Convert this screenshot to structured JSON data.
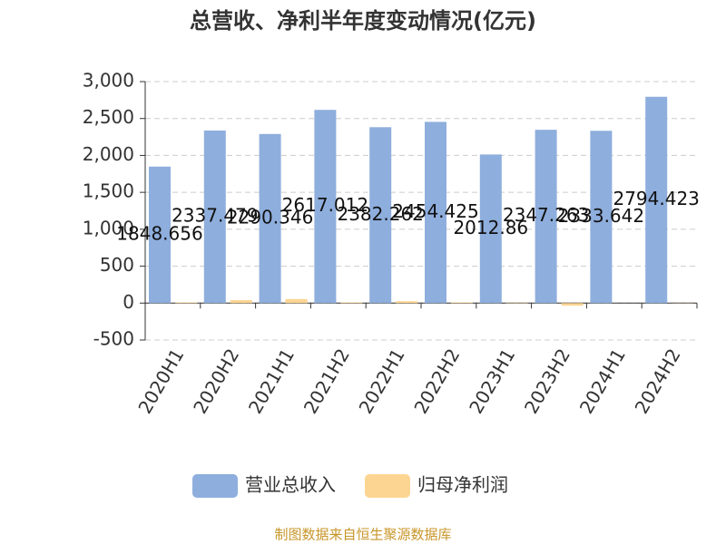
{
  "chart_data": {
    "type": "bar",
    "title": "总营收、净利半年度变动情况(亿元)",
    "categories": [
      "2020H1",
      "2020H2",
      "2021H1",
      "2021H2",
      "2022H1",
      "2022H2",
      "2023H1",
      "2023H2",
      "2024H1",
      "2024H2"
    ],
    "series": [
      {
        "name": "营业总收入",
        "color": "#8eaedd",
        "values": [
          1848.656,
          2337.479,
          2290.346,
          2617.012,
          2382.262,
          2454.425,
          2012.86,
          2347.263,
          2333.642,
          2794.423
        ],
        "labels": true
      },
      {
        "name": "归母净利润",
        "color": "#fdd592",
        "values": [
          10,
          40,
          55,
          10,
          25,
          10,
          5,
          -35,
          0,
          2
        ],
        "labels": false
      }
    ],
    "ylim": [
      -500,
      3000
    ],
    "yticks": [
      -500,
      0,
      500,
      {
        "value": 1000,
        "label": "1,000"
      },
      {
        "value": 1500,
        "label": "1,500"
      },
      {
        "value": 2000,
        "label": "2,000"
      },
      {
        "value": 2500,
        "label": "2,500"
      },
      {
        "value": 3000,
        "label": "3,000"
      }
    ],
    "grid": true,
    "source": "制图数据来自恒生聚源数据库"
  }
}
